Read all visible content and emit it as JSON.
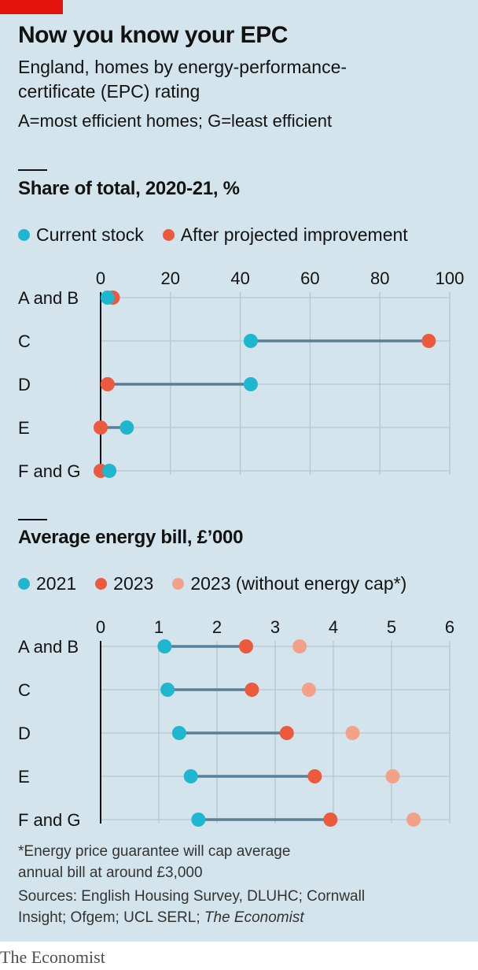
{
  "header": {
    "title": "Now you know your EPC",
    "subtitle_line1": "England, homes by energy-performance-",
    "subtitle_line2": "certificate (EPC) rating",
    "note": "A=most efficient homes; G=least efficient"
  },
  "colors": {
    "background": "#d4e4ec",
    "accent_red": "#e3120b",
    "cyan": "#1fb6d0",
    "red": "#ec5a3e",
    "salmon": "#f4a189",
    "connector": "#5a7f95",
    "grid": "#b3c5cf"
  },
  "chart_data": [
    {
      "type": "dot-range",
      "title": "Share of total, 2020-21, %",
      "categories": [
        "A and B",
        "C",
        "D",
        "E",
        "F and G"
      ],
      "xlim": [
        0,
        100
      ],
      "xticks": [
        0,
        20,
        40,
        60,
        80,
        100
      ],
      "series": [
        {
          "name": "Current stock",
          "color": "#1fb6d0",
          "values": [
            2,
            43,
            43,
            7.5,
            2.5
          ]
        },
        {
          "name": "After projected improvement",
          "color": "#ec5a3e",
          "values": [
            3.5,
            94,
            2,
            0,
            0
          ]
        }
      ]
    },
    {
      "type": "dot-range",
      "title": "Average energy bill, £’000",
      "categories": [
        "A and B",
        "C",
        "D",
        "E",
        "F and G"
      ],
      "xlim": [
        0,
        6
      ],
      "xticks": [
        0,
        1,
        2,
        3,
        4,
        5,
        6
      ],
      "series": [
        {
          "name": "2021",
          "color": "#1fb6d0",
          "values": [
            1.1,
            1.15,
            1.35,
            1.55,
            1.68
          ]
        },
        {
          "name": "2023",
          "color": "#ec5a3e",
          "values": [
            2.5,
            2.6,
            3.2,
            3.68,
            3.95
          ]
        },
        {
          "name": "2023 (without energy cap*)",
          "color": "#f4a189",
          "values": [
            3.42,
            3.58,
            4.33,
            5.02,
            5.38
          ]
        }
      ]
    }
  ],
  "footer": {
    "footnote_line1": "*Energy price guarantee will cap average",
    "footnote_line2": "annual bill at around £3,000",
    "sources_line1": "Sources: English Housing Survey, DLUHC; Cornwall",
    "sources_line2": "Insight; Ofgem; UCL SERL; The Economist"
  },
  "brand": "The Economist"
}
